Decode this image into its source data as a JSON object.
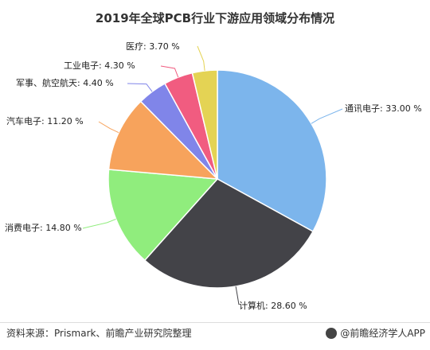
{
  "title": "2019年全球PCB行业下游应用领域分布情况",
  "source": "资料来源：Prismark、前瞻产业研究院整理",
  "brand": "@前瞻经济学人APP",
  "chart_data": {
    "type": "pie",
    "title": "2019年全球PCB行业下游应用领域分布情况",
    "unit": "%",
    "slices": [
      {
        "label": "通讯电子",
        "value": 33.0,
        "display": "通讯电子: 33.00 %",
        "color": "#7cb5ec"
      },
      {
        "label": "计算机",
        "value": 28.6,
        "display": "计算机: 28.60 %",
        "color": "#434348"
      },
      {
        "label": "消费电子",
        "value": 14.8,
        "display": "消费电子: 14.80 %",
        "color": "#90ed7d"
      },
      {
        "label": "汽车电子",
        "value": 11.2,
        "display": "汽车电子: 11.20 %",
        "color": "#f7a35c"
      },
      {
        "label": "军事、航空航天",
        "value": 4.4,
        "display": "军事、航空航天: 4.40 %",
        "color": "#8085e9"
      },
      {
        "label": "工业电子",
        "value": 4.3,
        "display": "工业电子: 4.30 %",
        "color": "#f15c80"
      },
      {
        "label": "医疗",
        "value": 3.7,
        "display": "医疗: 3.70 %",
        "color": "#e4d354"
      }
    ]
  }
}
